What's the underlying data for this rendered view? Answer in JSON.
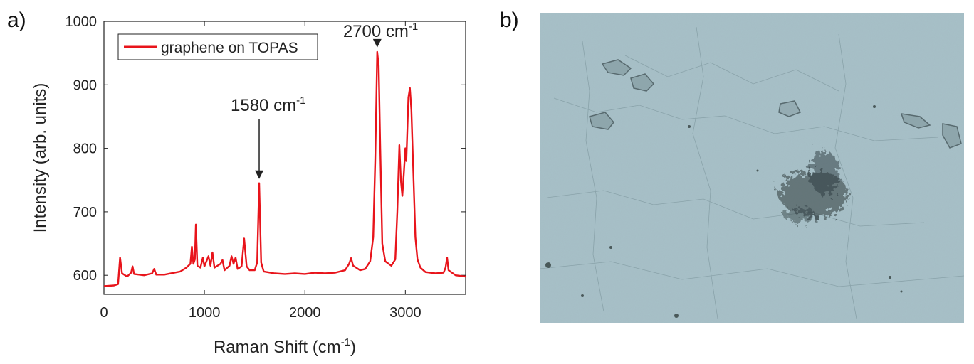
{
  "panels": {
    "a": {
      "label": "a)"
    },
    "b": {
      "label": "b)"
    }
  },
  "chart_data": {
    "type": "line",
    "xlabel": "Raman Shift (cm",
    "xlabel_sup": "-1",
    "xlabel_suffix": ")",
    "ylabel": "Intensity (arb. units)",
    "xlim": [
      0,
      3600
    ],
    "ylim": [
      570,
      1000
    ],
    "xticks": [
      0,
      1000,
      2000,
      3000
    ],
    "yticks": [
      600,
      700,
      800,
      900,
      1000
    ],
    "grid": false,
    "legend": {
      "position": "top-left"
    },
    "series": [
      {
        "name": "graphene on TOPAS",
        "color": "#e8141b",
        "points": [
          [
            0,
            583
          ],
          [
            100,
            584
          ],
          [
            140,
            586
          ],
          [
            160,
            628
          ],
          [
            180,
            603
          ],
          [
            230,
            598
          ],
          [
            270,
            604
          ],
          [
            285,
            614
          ],
          [
            300,
            602
          ],
          [
            400,
            600
          ],
          [
            480,
            603
          ],
          [
            500,
            610
          ],
          [
            520,
            601
          ],
          [
            600,
            601
          ],
          [
            700,
            604
          ],
          [
            760,
            606
          ],
          [
            820,
            612
          ],
          [
            860,
            618
          ],
          [
            875,
            645
          ],
          [
            890,
            618
          ],
          [
            905,
            625
          ],
          [
            915,
            680
          ],
          [
            930,
            615
          ],
          [
            960,
            612
          ],
          [
            985,
            628
          ],
          [
            1000,
            614
          ],
          [
            1040,
            630
          ],
          [
            1060,
            615
          ],
          [
            1080,
            636
          ],
          [
            1100,
            612
          ],
          [
            1160,
            618
          ],
          [
            1180,
            624
          ],
          [
            1200,
            608
          ],
          [
            1250,
            615
          ],
          [
            1270,
            630
          ],
          [
            1290,
            618
          ],
          [
            1310,
            628
          ],
          [
            1330,
            610
          ],
          [
            1370,
            614
          ],
          [
            1395,
            658
          ],
          [
            1420,
            614
          ],
          [
            1450,
            608
          ],
          [
            1500,
            608
          ],
          [
            1525,
            620
          ],
          [
            1545,
            745
          ],
          [
            1565,
            620
          ],
          [
            1590,
            606
          ],
          [
            1700,
            603
          ],
          [
            1800,
            602
          ],
          [
            1900,
            603
          ],
          [
            2000,
            602
          ],
          [
            2100,
            604
          ],
          [
            2200,
            603
          ],
          [
            2300,
            604
          ],
          [
            2400,
            608
          ],
          [
            2440,
            618
          ],
          [
            2460,
            627
          ],
          [
            2480,
            615
          ],
          [
            2550,
            608
          ],
          [
            2600,
            610
          ],
          [
            2650,
            622
          ],
          [
            2680,
            660
          ],
          [
            2700,
            780
          ],
          [
            2720,
            952
          ],
          [
            2735,
            930
          ],
          [
            2750,
            800
          ],
          [
            2770,
            650
          ],
          [
            2800,
            622
          ],
          [
            2860,
            615
          ],
          [
            2900,
            625
          ],
          [
            2920,
            700
          ],
          [
            2940,
            805
          ],
          [
            2955,
            750
          ],
          [
            2970,
            725
          ],
          [
            2985,
            760
          ],
          [
            3000,
            800
          ],
          [
            3010,
            780
          ],
          [
            3030,
            880
          ],
          [
            3045,
            895
          ],
          [
            3060,
            860
          ],
          [
            3080,
            760
          ],
          [
            3100,
            660
          ],
          [
            3120,
            625
          ],
          [
            3150,
            612
          ],
          [
            3200,
            605
          ],
          [
            3300,
            603
          ],
          [
            3380,
            604
          ],
          [
            3400,
            612
          ],
          [
            3415,
            628
          ],
          [
            3430,
            608
          ],
          [
            3500,
            600
          ],
          [
            3600,
            598
          ]
        ]
      }
    ],
    "annotations": [
      {
        "text": "1580 cm",
        "sup": "-1",
        "x": 1545,
        "y": 745
      },
      {
        "text": "2700 cm",
        "sup": "-1",
        "x": 2720,
        "y": 952
      }
    ]
  },
  "photo": {
    "description_color": "#a7c1c9"
  }
}
